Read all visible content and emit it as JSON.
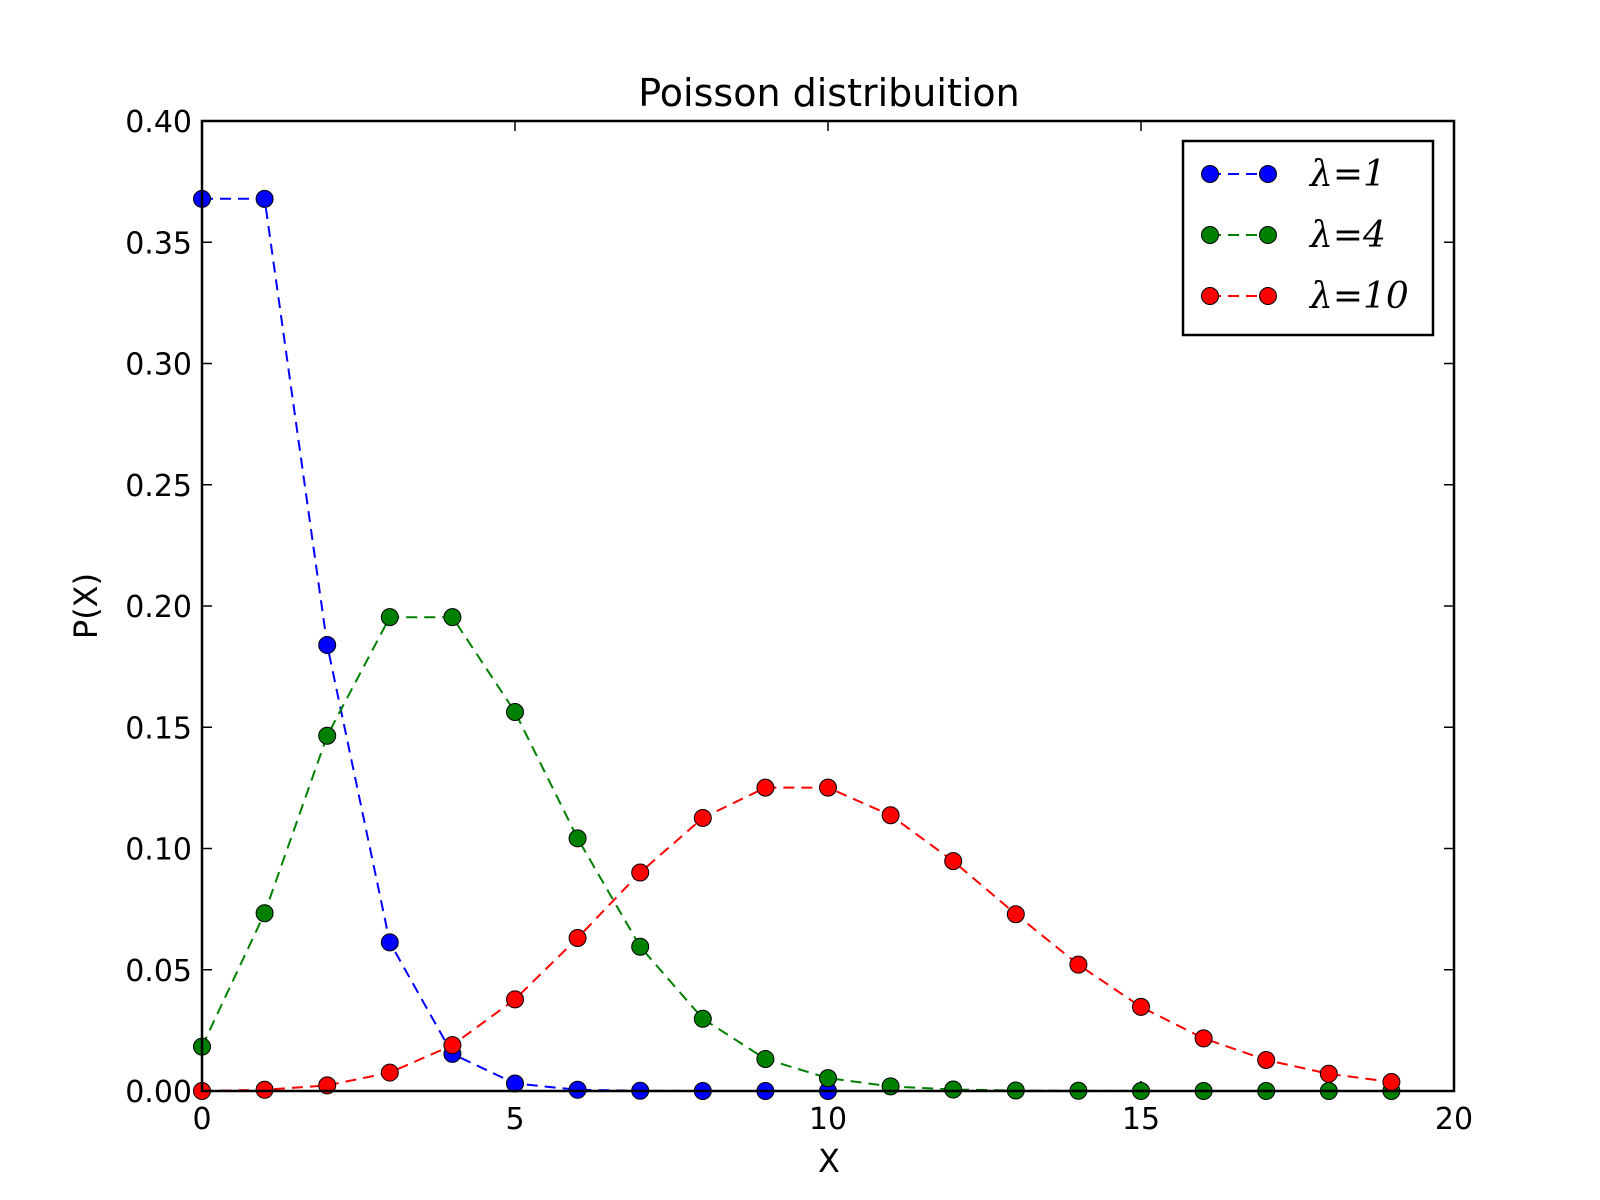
{
  "chart_data": {
    "type": "line",
    "title": "Poisson distribuition",
    "xlabel": "X",
    "ylabel": "P(X)",
    "xlim": [
      0,
      20
    ],
    "ylim": [
      0,
      0.4
    ],
    "x_ticks": [
      "0",
      "5",
      "10",
      "15",
      "20"
    ],
    "y_ticks": [
      "0.00",
      "0.05",
      "0.10",
      "0.15",
      "0.20",
      "0.25",
      "0.30",
      "0.35",
      "0.40"
    ],
    "grid": false,
    "legend_position": "top-right",
    "line_style": "dashed with circle markers",
    "x": [
      0,
      1,
      2,
      3,
      4,
      5,
      6,
      7,
      8,
      9,
      10,
      11,
      12,
      13,
      14,
      15,
      16,
      17,
      18,
      19
    ],
    "series": [
      {
        "name": "λ=1",
        "color": "#0000ff",
        "x": [
          0,
          1,
          2,
          3,
          4,
          5,
          6,
          7,
          8,
          9,
          10
        ],
        "values": [
          0.3679,
          0.3679,
          0.1839,
          0.0613,
          0.0153,
          0.0031,
          0.0005,
          0.0001,
          0.0,
          0.0,
          0.0
        ]
      },
      {
        "name": "λ=4",
        "color": "#008000",
        "x": [
          0,
          1,
          2,
          3,
          4,
          5,
          6,
          7,
          8,
          9,
          10,
          11,
          12,
          13,
          14,
          15,
          16,
          17,
          18,
          19
        ],
        "values": [
          0.0183,
          0.0733,
          0.1465,
          0.1954,
          0.1954,
          0.1563,
          0.1042,
          0.0595,
          0.0298,
          0.0132,
          0.0053,
          0.0019,
          0.0006,
          0.0002,
          0.0001,
          0.0,
          0.0,
          0.0,
          0.0,
          0.0
        ]
      },
      {
        "name": "λ=10",
        "color": "#ff0000",
        "x": [
          0,
          1,
          2,
          3,
          4,
          5,
          6,
          7,
          8,
          9,
          10,
          11,
          12,
          13,
          14,
          15,
          16,
          17,
          18,
          19
        ],
        "values": [
          0.0,
          0.0005,
          0.0023,
          0.0076,
          0.0189,
          0.0378,
          0.0631,
          0.0901,
          0.1126,
          0.1251,
          0.1251,
          0.1137,
          0.0948,
          0.0729,
          0.0521,
          0.0347,
          0.0217,
          0.0128,
          0.0071,
          0.0037
        ]
      }
    ]
  }
}
